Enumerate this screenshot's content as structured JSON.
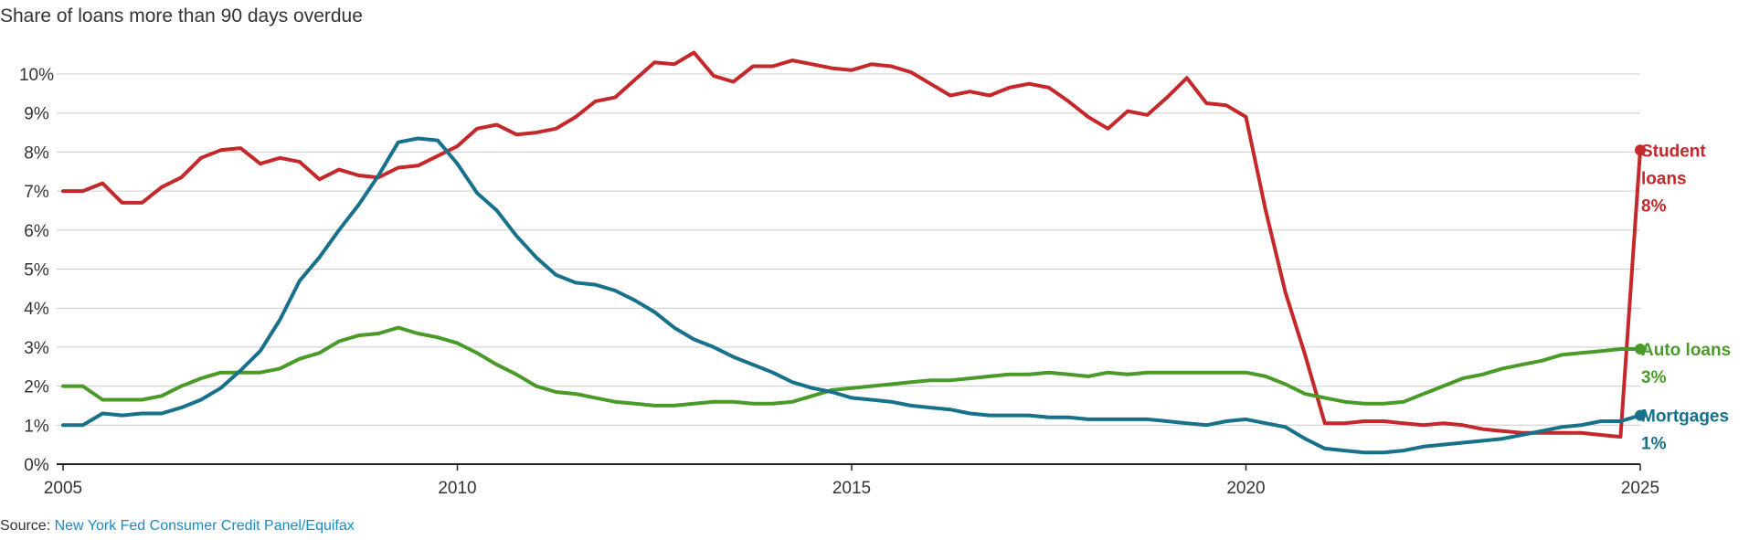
{
  "title": "Share of loans more than 90 days overdue",
  "source": {
    "prefix": "Source: ",
    "link_text": "New York Fed Consumer Credit Panel/Equifax"
  },
  "chart_data": {
    "type": "line",
    "x_range": [
      2005,
      2025
    ],
    "y_range": [
      0,
      10
    ],
    "x_ticks": [
      2005,
      2010,
      2015,
      2020,
      2025
    ],
    "x_tick_labels": [
      "2005",
      "2010",
      "2015",
      "2020",
      "2025"
    ],
    "y_ticks": [
      0,
      1,
      2,
      3,
      4,
      5,
      6,
      7,
      8,
      9,
      10
    ],
    "y_tick_labels": [
      "0%",
      "1%",
      "2%",
      "3%",
      "4%",
      "5%",
      "6%",
      "7%",
      "8%",
      "9%",
      "10%"
    ],
    "grid": "horizontal",
    "series": [
      {
        "name": "Student loans",
        "label_lines": [
          "Student",
          "loans"
        ],
        "value_label": "8%",
        "color": "#c4282a",
        "points": [
          [
            2005,
            7.0
          ],
          [
            2005.25,
            7.0
          ],
          [
            2005.5,
            7.2
          ],
          [
            2005.75,
            6.7
          ],
          [
            2006,
            6.7
          ],
          [
            2006.25,
            7.1
          ],
          [
            2006.5,
            7.35
          ],
          [
            2006.75,
            7.85
          ],
          [
            2007,
            8.05
          ],
          [
            2007.25,
            8.1
          ],
          [
            2007.5,
            7.7
          ],
          [
            2007.75,
            7.85
          ],
          [
            2008,
            7.75
          ],
          [
            2008.25,
            7.3
          ],
          [
            2008.5,
            7.55
          ],
          [
            2008.75,
            7.4
          ],
          [
            2009,
            7.35
          ],
          [
            2009.25,
            7.6
          ],
          [
            2009.5,
            7.65
          ],
          [
            2009.75,
            7.9
          ],
          [
            2010,
            8.15
          ],
          [
            2010.25,
            8.6
          ],
          [
            2010.5,
            8.7
          ],
          [
            2010.75,
            8.45
          ],
          [
            2011,
            8.5
          ],
          [
            2011.25,
            8.6
          ],
          [
            2011.5,
            8.9
          ],
          [
            2011.75,
            9.3
          ],
          [
            2012,
            9.4
          ],
          [
            2012.25,
            9.85
          ],
          [
            2012.5,
            10.3
          ],
          [
            2012.75,
            10.25
          ],
          [
            2013,
            10.55
          ],
          [
            2013.25,
            9.95
          ],
          [
            2013.5,
            9.8
          ],
          [
            2013.75,
            10.2
          ],
          [
            2014,
            10.2
          ],
          [
            2014.25,
            10.35
          ],
          [
            2014.5,
            10.25
          ],
          [
            2014.75,
            10.15
          ],
          [
            2015,
            10.1
          ],
          [
            2015.25,
            10.25
          ],
          [
            2015.5,
            10.2
          ],
          [
            2015.75,
            10.05
          ],
          [
            2016,
            9.75
          ],
          [
            2016.25,
            9.45
          ],
          [
            2016.5,
            9.55
          ],
          [
            2016.75,
            9.45
          ],
          [
            2017,
            9.65
          ],
          [
            2017.25,
            9.75
          ],
          [
            2017.5,
            9.65
          ],
          [
            2017.75,
            9.3
          ],
          [
            2018,
            8.9
          ],
          [
            2018.25,
            8.6
          ],
          [
            2018.5,
            9.05
          ],
          [
            2018.75,
            8.95
          ],
          [
            2019,
            9.4
          ],
          [
            2019.25,
            9.9
          ],
          [
            2019.5,
            9.25
          ],
          [
            2019.75,
            9.2
          ],
          [
            2020,
            8.9
          ],
          [
            2020.25,
            6.5
          ],
          [
            2020.5,
            4.4
          ],
          [
            2020.75,
            2.8
          ],
          [
            2021,
            1.05
          ],
          [
            2021.25,
            1.05
          ],
          [
            2021.5,
            1.1
          ],
          [
            2021.75,
            1.1
          ],
          [
            2022,
            1.05
          ],
          [
            2022.25,
            1.0
          ],
          [
            2022.5,
            1.05
          ],
          [
            2022.75,
            1.0
          ],
          [
            2023,
            0.9
          ],
          [
            2023.25,
            0.85
          ],
          [
            2023.5,
            0.8
          ],
          [
            2023.75,
            0.8
          ],
          [
            2024,
            0.8
          ],
          [
            2024.25,
            0.8
          ],
          [
            2024.5,
            0.75
          ],
          [
            2024.75,
            0.7
          ],
          [
            2025,
            8.05
          ]
        ]
      },
      {
        "name": "Auto loans",
        "label_lines": [
          "Auto loans"
        ],
        "value_label": "3%",
        "color": "#4a9a2a",
        "points": [
          [
            2005,
            2.0
          ],
          [
            2005.25,
            2.0
          ],
          [
            2005.5,
            1.65
          ],
          [
            2005.75,
            1.65
          ],
          [
            2006,
            1.65
          ],
          [
            2006.25,
            1.75
          ],
          [
            2006.5,
            2.0
          ],
          [
            2006.75,
            2.2
          ],
          [
            2007,
            2.35
          ],
          [
            2007.25,
            2.35
          ],
          [
            2007.5,
            2.35
          ],
          [
            2007.75,
            2.45
          ],
          [
            2008,
            2.7
          ],
          [
            2008.25,
            2.85
          ],
          [
            2008.5,
            3.15
          ],
          [
            2008.75,
            3.3
          ],
          [
            2009,
            3.35
          ],
          [
            2009.25,
            3.5
          ],
          [
            2009.5,
            3.35
          ],
          [
            2009.75,
            3.25
          ],
          [
            2010,
            3.1
          ],
          [
            2010.25,
            2.85
          ],
          [
            2010.5,
            2.55
          ],
          [
            2010.75,
            2.3
          ],
          [
            2011,
            2.0
          ],
          [
            2011.25,
            1.85
          ],
          [
            2011.5,
            1.8
          ],
          [
            2011.75,
            1.7
          ],
          [
            2012,
            1.6
          ],
          [
            2012.25,
            1.55
          ],
          [
            2012.5,
            1.5
          ],
          [
            2012.75,
            1.5
          ],
          [
            2013,
            1.55
          ],
          [
            2013.25,
            1.6
          ],
          [
            2013.5,
            1.6
          ],
          [
            2013.75,
            1.55
          ],
          [
            2014,
            1.55
          ],
          [
            2014.25,
            1.6
          ],
          [
            2014.5,
            1.75
          ],
          [
            2014.75,
            1.9
          ],
          [
            2015,
            1.95
          ],
          [
            2015.25,
            2.0
          ],
          [
            2015.5,
            2.05
          ],
          [
            2015.75,
            2.1
          ],
          [
            2016,
            2.15
          ],
          [
            2016.25,
            2.15
          ],
          [
            2016.5,
            2.2
          ],
          [
            2016.75,
            2.25
          ],
          [
            2017,
            2.3
          ],
          [
            2017.25,
            2.3
          ],
          [
            2017.5,
            2.35
          ],
          [
            2017.75,
            2.3
          ],
          [
            2018,
            2.25
          ],
          [
            2018.25,
            2.35
          ],
          [
            2018.5,
            2.3
          ],
          [
            2018.75,
            2.35
          ],
          [
            2019,
            2.35
          ],
          [
            2019.25,
            2.35
          ],
          [
            2019.5,
            2.35
          ],
          [
            2019.75,
            2.35
          ],
          [
            2020,
            2.35
          ],
          [
            2020.25,
            2.25
          ],
          [
            2020.5,
            2.05
          ],
          [
            2020.75,
            1.8
          ],
          [
            2021,
            1.7
          ],
          [
            2021.25,
            1.6
          ],
          [
            2021.5,
            1.55
          ],
          [
            2021.75,
            1.55
          ],
          [
            2022,
            1.6
          ],
          [
            2022.25,
            1.8
          ],
          [
            2022.5,
            2.0
          ],
          [
            2022.75,
            2.2
          ],
          [
            2023,
            2.3
          ],
          [
            2023.25,
            2.45
          ],
          [
            2023.5,
            2.55
          ],
          [
            2023.75,
            2.65
          ],
          [
            2024,
            2.8
          ],
          [
            2024.25,
            2.85
          ],
          [
            2024.5,
            2.9
          ],
          [
            2024.75,
            2.95
          ],
          [
            2025,
            2.95
          ]
        ]
      },
      {
        "name": "Mortgages",
        "label_lines": [
          "Mortgages"
        ],
        "value_label": "1%",
        "color": "#17718a",
        "points": [
          [
            2005,
            1.0
          ],
          [
            2005.25,
            1.0
          ],
          [
            2005.5,
            1.3
          ],
          [
            2005.75,
            1.25
          ],
          [
            2006,
            1.3
          ],
          [
            2006.25,
            1.3
          ],
          [
            2006.5,
            1.45
          ],
          [
            2006.75,
            1.65
          ],
          [
            2007,
            1.95
          ],
          [
            2007.25,
            2.4
          ],
          [
            2007.5,
            2.9
          ],
          [
            2007.75,
            3.7
          ],
          [
            2008,
            4.7
          ],
          [
            2008.25,
            5.3
          ],
          [
            2008.5,
            6.0
          ],
          [
            2008.75,
            6.65
          ],
          [
            2009,
            7.4
          ],
          [
            2009.25,
            8.25
          ],
          [
            2009.5,
            8.35
          ],
          [
            2009.75,
            8.3
          ],
          [
            2010,
            7.7
          ],
          [
            2010.25,
            6.95
          ],
          [
            2010.5,
            6.5
          ],
          [
            2010.75,
            5.85
          ],
          [
            2011,
            5.3
          ],
          [
            2011.25,
            4.85
          ],
          [
            2011.5,
            4.65
          ],
          [
            2011.75,
            4.6
          ],
          [
            2012,
            4.45
          ],
          [
            2012.25,
            4.2
          ],
          [
            2012.5,
            3.9
          ],
          [
            2012.75,
            3.5
          ],
          [
            2013,
            3.2
          ],
          [
            2013.25,
            3.0
          ],
          [
            2013.5,
            2.75
          ],
          [
            2013.75,
            2.55
          ],
          [
            2014,
            2.35
          ],
          [
            2014.25,
            2.1
          ],
          [
            2014.5,
            1.95
          ],
          [
            2014.75,
            1.85
          ],
          [
            2015,
            1.7
          ],
          [
            2015.25,
            1.65
          ],
          [
            2015.5,
            1.6
          ],
          [
            2015.75,
            1.5
          ],
          [
            2016,
            1.45
          ],
          [
            2016.25,
            1.4
          ],
          [
            2016.5,
            1.3
          ],
          [
            2016.75,
            1.25
          ],
          [
            2017,
            1.25
          ],
          [
            2017.25,
            1.25
          ],
          [
            2017.5,
            1.2
          ],
          [
            2017.75,
            1.2
          ],
          [
            2018,
            1.15
          ],
          [
            2018.25,
            1.15
          ],
          [
            2018.5,
            1.15
          ],
          [
            2018.75,
            1.15
          ],
          [
            2019,
            1.1
          ],
          [
            2019.25,
            1.05
          ],
          [
            2019.5,
            1.0
          ],
          [
            2019.75,
            1.1
          ],
          [
            2020,
            1.15
          ],
          [
            2020.25,
            1.05
          ],
          [
            2020.5,
            0.95
          ],
          [
            2020.75,
            0.65
          ],
          [
            2021,
            0.4
          ],
          [
            2021.25,
            0.35
          ],
          [
            2021.5,
            0.3
          ],
          [
            2021.75,
            0.3
          ],
          [
            2022,
            0.35
          ],
          [
            2022.25,
            0.45
          ],
          [
            2022.5,
            0.5
          ],
          [
            2022.75,
            0.55
          ],
          [
            2023,
            0.6
          ],
          [
            2023.25,
            0.65
          ],
          [
            2023.5,
            0.75
          ],
          [
            2023.75,
            0.85
          ],
          [
            2024,
            0.95
          ],
          [
            2024.25,
            1.0
          ],
          [
            2024.5,
            1.1
          ],
          [
            2024.75,
            1.1
          ],
          [
            2025,
            1.25
          ]
        ]
      }
    ]
  }
}
